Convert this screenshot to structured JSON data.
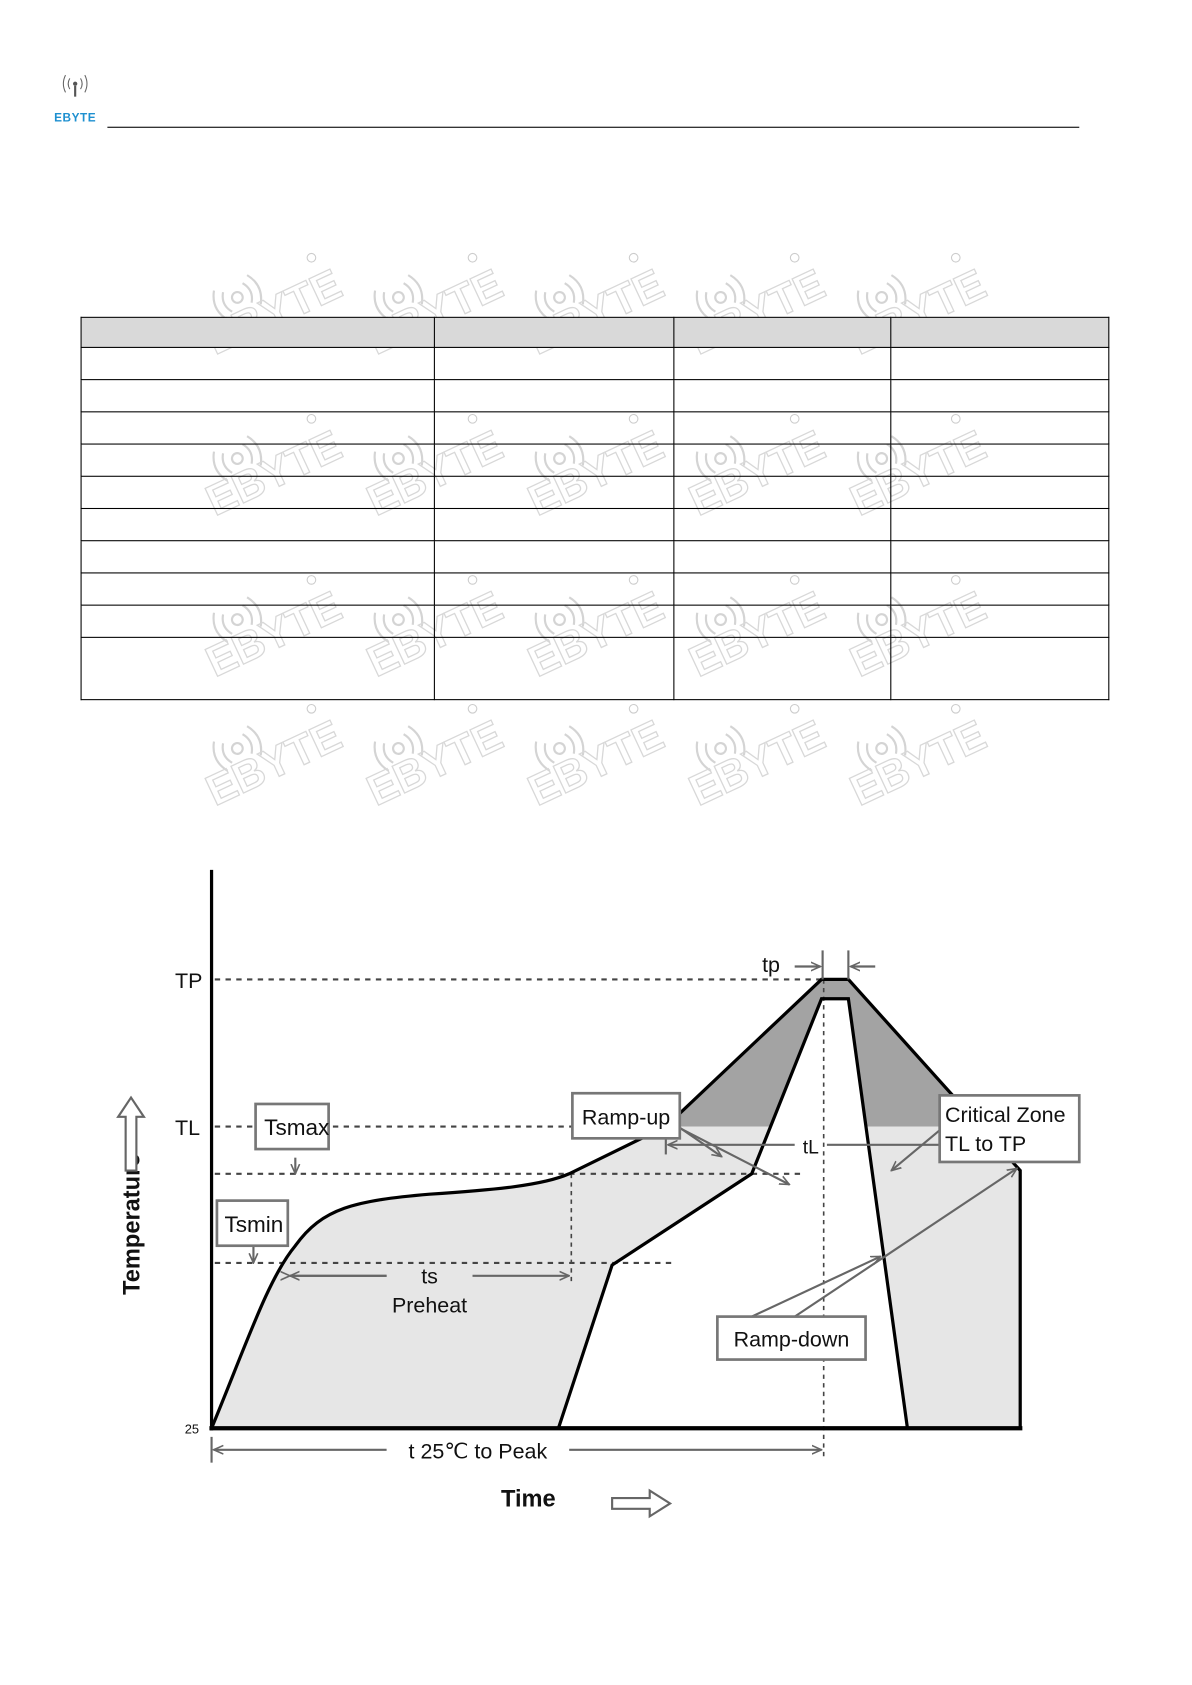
{
  "header": {
    "logo_text": "EBYTE",
    "logo_color": "#1e90d0"
  },
  "table": {
    "columns": 4,
    "rows": 11
  },
  "watermark": {
    "text": "EBYTE"
  },
  "diagram": {
    "y_axis_label": "Temperature",
    "x_axis_label": "Time",
    "tp_level": "TP",
    "tl_level": "TL",
    "base_value": "25",
    "ts_max": "Tsmax",
    "ts_min": "Tsmin",
    "ts_label": "ts",
    "preheat_label": "Preheat",
    "tl_time": "tL",
    "tp_time": "tp",
    "ramp_up": "Ramp-up",
    "ramp_down": "Ramp-down",
    "critical_zone_line1": "Critical Zone",
    "critical_zone_line2": "TL to TP",
    "t_to_peak": "t 25℃ to Peak",
    "colors": {
      "critical_zone": "#a3a3a3",
      "window": "#e6e6e6"
    }
  }
}
